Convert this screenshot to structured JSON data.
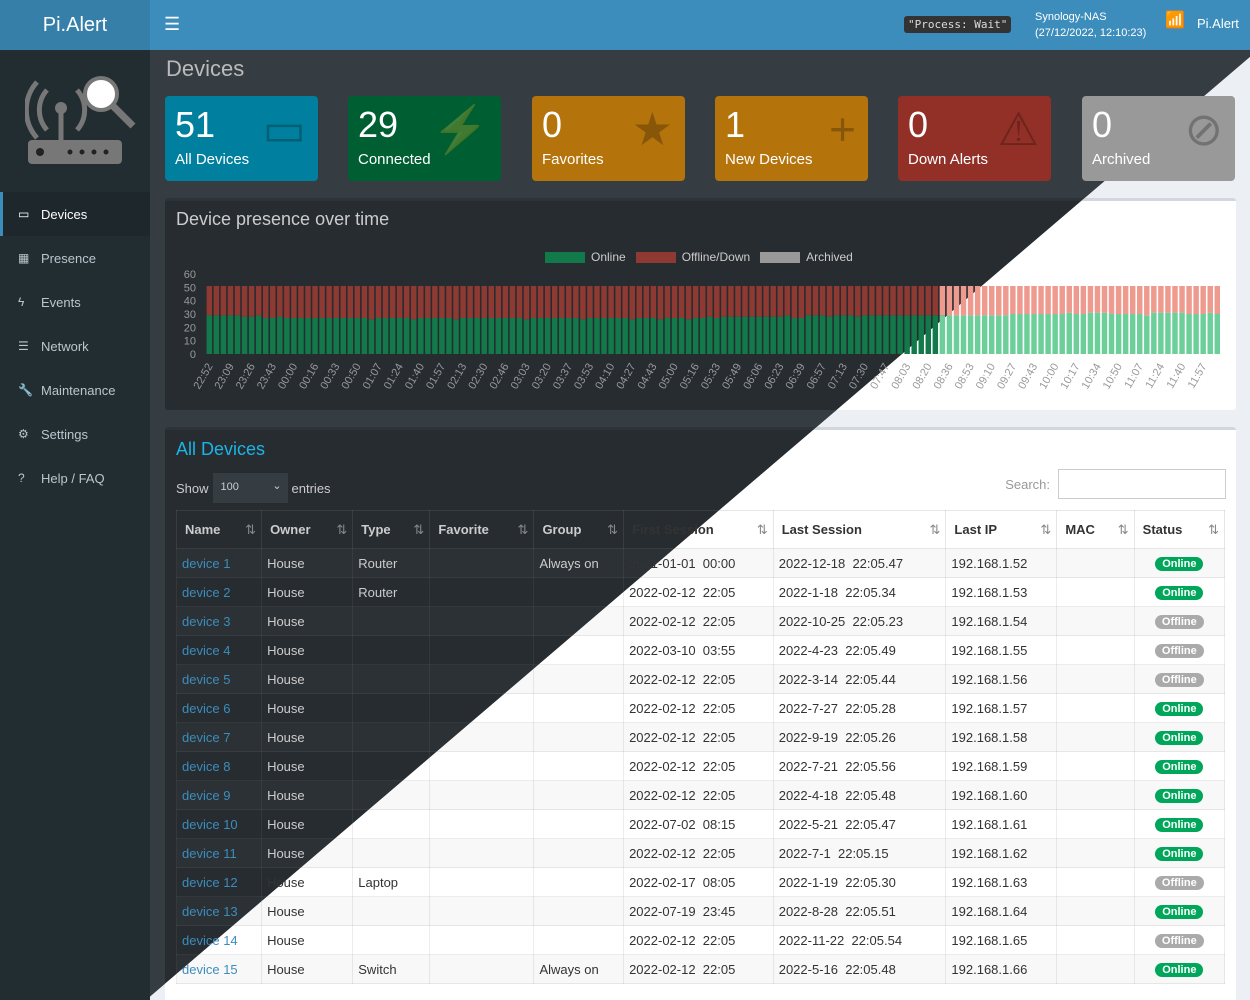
{
  "header": {
    "brand": "Pi.Alert",
    "menu_icon": "hamburger-icon",
    "process": "\"Process: Wait\"",
    "host": "Synology-NAS",
    "datetime": "(27/12/2022, 12:10:23)",
    "user": "Pi.Alert"
  },
  "sidebar": {
    "items": [
      {
        "label": "Devices",
        "icon": "laptop-icon",
        "glyph": "▭"
      },
      {
        "label": "Presence",
        "icon": "calendar-icon",
        "glyph": "▦"
      },
      {
        "label": "Events",
        "icon": "bolt-icon",
        "glyph": "ϟ"
      },
      {
        "label": "Network",
        "icon": "server-icon",
        "glyph": "☰"
      },
      {
        "label": "Maintenance",
        "icon": "wrench-icon",
        "glyph": "🔧"
      },
      {
        "label": "Settings",
        "icon": "gear-icon",
        "glyph": "⚙"
      },
      {
        "label": "Help / FAQ",
        "icon": "question-icon",
        "glyph": "?"
      }
    ]
  },
  "page_title": "Devices",
  "stats": [
    {
      "value": "51",
      "label": "All Devices",
      "color": "#00809e",
      "glyph": "▭"
    },
    {
      "value": "29",
      "label": "Connected",
      "color": "#005e33",
      "glyph": "⚡"
    },
    {
      "value": "0",
      "label": "Favorites",
      "color": "#b5730c",
      "glyph": "★"
    },
    {
      "value": "1",
      "label": "New Devices",
      "color": "#b5730c",
      "glyph": "+"
    },
    {
      "value": "0",
      "label": "Down Alerts",
      "color": "#923027",
      "glyph": "⚠"
    },
    {
      "value": "0",
      "label": "Archived",
      "color": "#999999",
      "glyph": "⊘"
    }
  ],
  "chart_title": "Device presence over time",
  "chart_data": {
    "type": "bar",
    "stacked": true,
    "legend": "top",
    "series_names": [
      "Online",
      "Offline/Down",
      "Archived"
    ],
    "colors": {
      "online": "#127a4a",
      "offline": "#8e3a32",
      "archived": "#999999"
    },
    "ylim": [
      0,
      60
    ],
    "yticks": [
      0,
      10,
      20,
      30,
      40,
      50,
      60
    ],
    "total": 51,
    "xticks": [
      "22:52",
      "23:09",
      "23:26",
      "23:43",
      "00:00",
      "00:16",
      "00:33",
      "00:50",
      "01:07",
      "01:24",
      "01:40",
      "01:57",
      "02:13",
      "02:30",
      "02:46",
      "03:03",
      "03:20",
      "03:37",
      "03:53",
      "04:10",
      "04:27",
      "04:43",
      "05:00",
      "05:16",
      "05:33",
      "05:49",
      "06:06",
      "06:23",
      "06:39",
      "06:57",
      "07:13",
      "07:30",
      "07:47",
      "08:03",
      "08:20",
      "08:36",
      "08:53",
      "09:10",
      "09:27",
      "09:43",
      "10:00",
      "10:17",
      "10:34",
      "10:50",
      "11:07",
      "11:24",
      "11:40",
      "11:57"
    ],
    "online": [
      29,
      29,
      29,
      29,
      29,
      28,
      28,
      29,
      27,
      27,
      28,
      27,
      27,
      27,
      27,
      27,
      27,
      27,
      27,
      27,
      27,
      27,
      27,
      26,
      27,
      27,
      27,
      27,
      27,
      26,
      27,
      27,
      27,
      27,
      27,
      26,
      27,
      27,
      27,
      27,
      27,
      27,
      27,
      27,
      27,
      26,
      27,
      27,
      27,
      27,
      27,
      27,
      27,
      26,
      27,
      27,
      27,
      27,
      27,
      27,
      26,
      27,
      27,
      27,
      26,
      27,
      27,
      27,
      26,
      27,
      27,
      28,
      27,
      28,
      28,
      28,
      28,
      28,
      28,
      28,
      28,
      28,
      29,
      27,
      27,
      29,
      29,
      29,
      28,
      29,
      29,
      29,
      28,
      29,
      29,
      29,
      29,
      29,
      29,
      29,
      29,
      29,
      29,
      29,
      29,
      29,
      29,
      29,
      29,
      29,
      29,
      29,
      29,
      29,
      30,
      30,
      30,
      30,
      30,
      30,
      30,
      30,
      31,
      30,
      30,
      31,
      31,
      31,
      30,
      30,
      30,
      30,
      30,
      29,
      31,
      31,
      31,
      31,
      31,
      30,
      30,
      30,
      31,
      30
    ]
  },
  "table": {
    "title": "All Devices",
    "show": "Show",
    "entries_value": "100",
    "entries": "entries",
    "search_label": "Search:",
    "search_value": "",
    "columns": [
      "Name",
      "Owner",
      "Type",
      "Favorite",
      "Group",
      "First Session",
      "Last Session",
      "Last IP",
      "MAC",
      "Status"
    ],
    "rows": [
      [
        "device 1",
        "House",
        "Router",
        "",
        "Always on",
        "2021-01-01  00:00",
        "2022-12-18  22:05.47",
        "192.168.1.52",
        "",
        "Online"
      ],
      [
        "device 2",
        "House",
        "Router",
        "",
        "",
        "2022-02-12  22:05",
        "2022-1-18  22:05.34",
        "192.168.1.53",
        "",
        "Online"
      ],
      [
        "device 3",
        "House",
        "",
        "",
        "",
        "2022-02-12  22:05",
        "2022-10-25  22:05.23",
        "192.168.1.54",
        "",
        "Offline"
      ],
      [
        "device 4",
        "House",
        "",
        "",
        "",
        "2022-03-10  03:55",
        "2022-4-23  22:05.49",
        "192.168.1.55",
        "",
        "Offline"
      ],
      [
        "device 5",
        "House",
        "",
        "",
        "",
        "2022-02-12  22:05",
        "2022-3-14  22:05.44",
        "192.168.1.56",
        "",
        "Offline"
      ],
      [
        "device 6",
        "House",
        "",
        "",
        "",
        "2022-02-12  22:05",
        "2022-7-27  22:05.28",
        "192.168.1.57",
        "",
        "Online"
      ],
      [
        "device 7",
        "House",
        "",
        "",
        "",
        "2022-02-12  22:05",
        "2022-9-19  22:05.26",
        "192.168.1.58",
        "",
        "Online"
      ],
      [
        "device 8",
        "House",
        "",
        "",
        "",
        "2022-02-12  22:05",
        "2022-7-21  22:05.56",
        "192.168.1.59",
        "",
        "Online"
      ],
      [
        "device 9",
        "House",
        "",
        "",
        "",
        "2022-02-12  22:05",
        "2022-4-18  22:05.48",
        "192.168.1.60",
        "",
        "Online"
      ],
      [
        "device 10",
        "House",
        "",
        "",
        "",
        "2022-07-02  08:15",
        "2022-5-21  22:05.47",
        "192.168.1.61",
        "",
        "Online"
      ],
      [
        "device 11",
        "House",
        "",
        "",
        "",
        "2022-02-12  22:05",
        "2022-7-1  22:05.15",
        "192.168.1.62",
        "",
        "Online"
      ],
      [
        "device 12",
        "House",
        "Laptop",
        "",
        "",
        "2022-02-17  08:05",
        "2022-1-19  22:05.30",
        "192.168.1.63",
        "",
        "Offline"
      ],
      [
        "device 13",
        "House",
        "",
        "",
        "",
        "2022-07-19  23:45",
        "2022-8-28  22:05.51",
        "192.168.1.64",
        "",
        "Online"
      ],
      [
        "device 14",
        "House",
        "",
        "",
        "",
        "2022-02-12  22:05",
        "2022-11-22  22:05.54",
        "192.168.1.65",
        "",
        "Offline"
      ],
      [
        "device 15",
        "House",
        "Switch",
        "",
        "Always on",
        "2022-02-12  22:05",
        "2022-5-16  22:05.48",
        "192.168.1.66",
        "",
        "Online"
      ]
    ]
  }
}
